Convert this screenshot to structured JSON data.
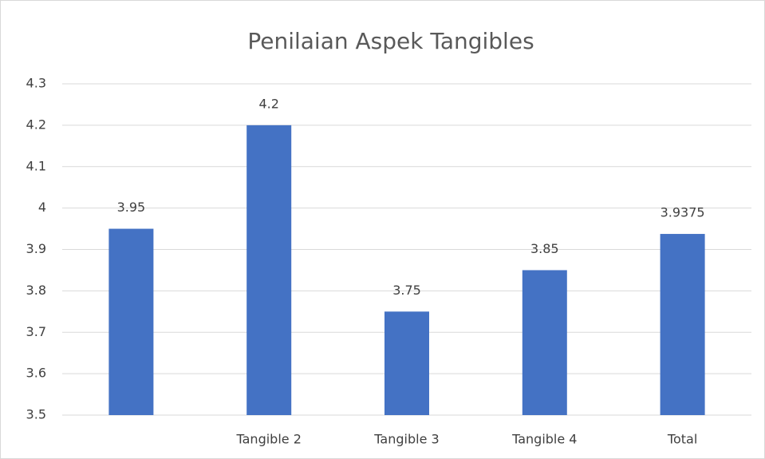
{
  "chart_data": {
    "type": "bar",
    "title": "Penilaian Aspek Tangibles",
    "categories": [
      null,
      "Tangible 2",
      "Tangible 3",
      "Tangible 4",
      "Total"
    ],
    "values": [
      3.95,
      4.2,
      3.75,
      3.85,
      3.9375
    ],
    "color": "#4472c4",
    "ylim": [
      3.5,
      4.3
    ],
    "yticks": [
      3.5,
      3.6,
      3.7,
      3.8,
      3.9,
      4,
      4.1,
      4.2,
      4.3
    ],
    "grid": true
  }
}
